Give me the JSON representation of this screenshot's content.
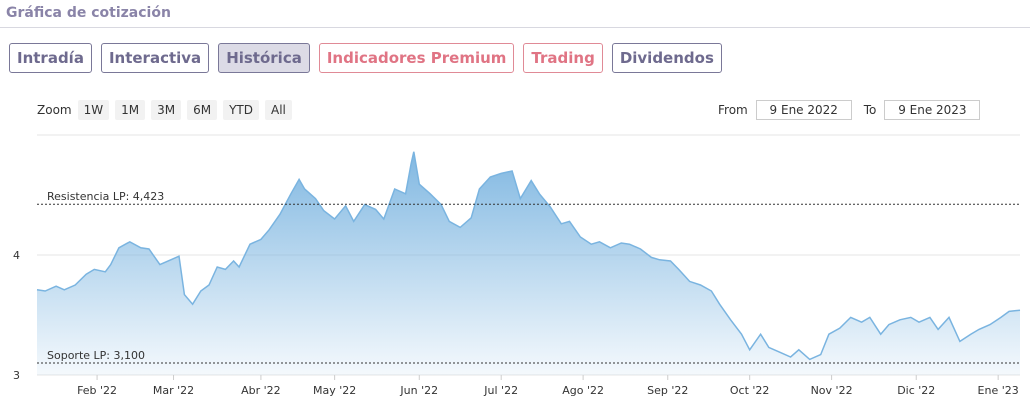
{
  "header": {
    "title": "Gráfica de cotización"
  },
  "tabs": [
    "Intradía",
    "Interactiva",
    "Histórica",
    "Indicadores Premium",
    "Trading",
    "Dividendos"
  ],
  "zoom": {
    "label": "Zoom",
    "buttons": [
      "1W",
      "1M",
      "3M",
      "6M",
      "YTD",
      "All"
    ]
  },
  "range": {
    "from_label": "From",
    "from": "9 Ene 2022",
    "to_label": "To",
    "to": "9 Ene 2023"
  },
  "chart_data": {
    "type": "area",
    "color": "#7ab4e0",
    "grid": true,
    "x": [
      0,
      3,
      7,
      10,
      14,
      18,
      21,
      25,
      27,
      30,
      34,
      38,
      41,
      45,
      49,
      52,
      54,
      57,
      60,
      63,
      66,
      69,
      72,
      74,
      78,
      82,
      85,
      89,
      93,
      96,
      98,
      102,
      105,
      109,
      113,
      116,
      120,
      124,
      127,
      131,
      135,
      137,
      138,
      140,
      144,
      148,
      151,
      155,
      159,
      162,
      166,
      170,
      174,
      177,
      181,
      184,
      188,
      192,
      195,
      199,
      203,
      206,
      210,
      214,
      217,
      221,
      225,
      228,
      232,
      235,
      239,
      243,
      247,
      250,
      254,
      258,
      261,
      265,
      268,
      272,
      276,
      279,
      283,
      287,
      290,
      294,
      298,
      302,
      305,
      309,
      312,
      316,
      320,
      323,
      327,
      330,
      334,
      338,
      342,
      345,
      349,
      353,
      356,
      360
    ],
    "values": [
      3.71,
      3.7,
      3.74,
      3.71,
      3.75,
      3.84,
      3.88,
      3.86,
      3.92,
      4.06,
      4.11,
      4.06,
      4.05,
      3.92,
      3.96,
      3.99,
      3.67,
      3.59,
      3.7,
      3.75,
      3.9,
      3.88,
      3.95,
      3.9,
      4.09,
      4.13,
      4.21,
      4.34,
      4.51,
      4.63,
      4.55,
      4.47,
      4.37,
      4.3,
      4.41,
      4.28,
      4.42,
      4.38,
      4.3,
      4.55,
      4.51,
      4.76,
      4.86,
      4.59,
      4.51,
      4.42,
      4.28,
      4.23,
      4.31,
      4.55,
      4.65,
      4.68,
      4.7,
      4.47,
      4.62,
      4.51,
      4.4,
      4.26,
      4.28,
      4.15,
      4.09,
      4.11,
      4.06,
      4.1,
      4.09,
      4.05,
      3.98,
      3.96,
      3.95,
      3.88,
      3.78,
      3.75,
      3.7,
      3.59,
      3.46,
      3.34,
      3.21,
      3.34,
      3.23,
      3.19,
      3.15,
      3.21,
      3.13,
      3.17,
      3.34,
      3.39,
      3.48,
      3.44,
      3.48,
      3.34,
      3.42,
      3.46,
      3.48,
      3.44,
      3.48,
      3.38,
      3.48,
      3.28,
      3.34,
      3.38,
      3.42,
      3.48,
      3.53,
      3.54
    ],
    "xlim": [
      0,
      360
    ],
    "xticks": [
      {
        "value": 22,
        "label": "Feb '22"
      },
      {
        "value": 50,
        "label": "Mar '22"
      },
      {
        "value": 82,
        "label": "Abr '22"
      },
      {
        "value": 109,
        "label": "May '22"
      },
      {
        "value": 140,
        "label": "Jun '22"
      },
      {
        "value": 170,
        "label": "Jul '22"
      },
      {
        "value": 200,
        "label": "Ago '22"
      },
      {
        "value": 231,
        "label": "Sep '22"
      },
      {
        "value": 261,
        "label": "Oct '22"
      },
      {
        "value": 291,
        "label": "Nov '22"
      },
      {
        "value": 322,
        "label": "Dic '22"
      },
      {
        "value": 352,
        "label": "Ene '23"
      }
    ],
    "ylim": [
      3,
      5
    ],
    "yticks": [
      3,
      4
    ],
    "annotations": [
      {
        "label": "Resistencia LP: 4,423",
        "value": 4.423
      },
      {
        "label": "Soporte LP: 3,100",
        "value": 3.1
      }
    ]
  }
}
